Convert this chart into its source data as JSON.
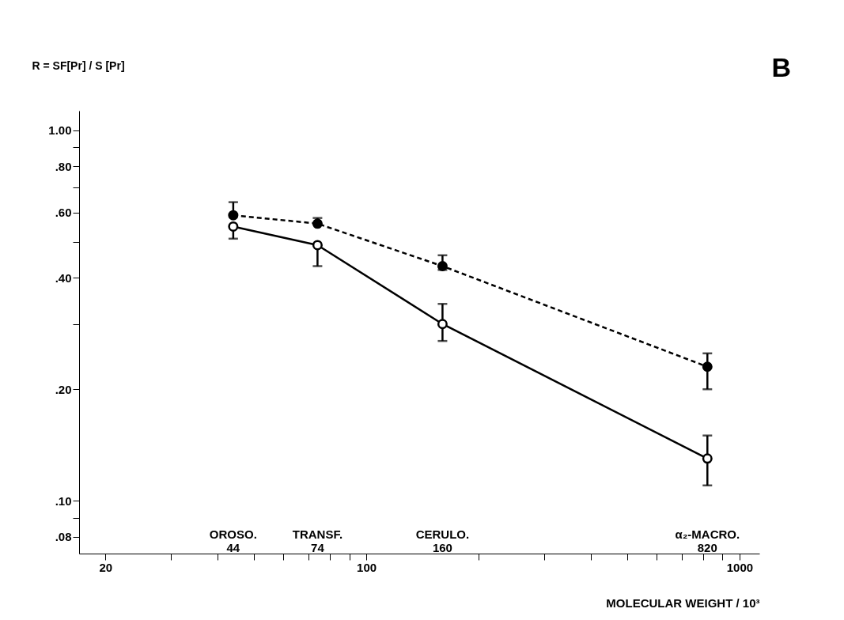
{
  "chart_data": {
    "type": "line",
    "ylabel": "R = SF[Pr] / S [Pr]",
    "xlabel": "MOLECULAR WEIGHT / 10³",
    "x": [
      44,
      74,
      160,
      820
    ],
    "series": [
      {
        "color": "#000000",
        "line_style": "dashed",
        "values": [
          0.59,
          0.56,
          0.43,
          0.23
        ],
        "errors": [
          [
            0.59,
            0.64
          ],
          [
            0.56,
            0.58
          ],
          [
            0.42,
            0.46
          ],
          [
            0.2,
            0.25
          ]
        ]
      },
      {
        "color": "#000000",
        "line_style": "solid",
        "values": [
          0.55,
          0.49,
          0.3,
          0.13
        ],
        "errors": [
          [
            0.51,
            0.55
          ],
          [
            0.43,
            0.49
          ],
          [
            0.27,
            0.34
          ],
          [
            0.11,
            0.15
          ]
        ]
      }
    ],
    "marker": "circle",
    "log": "xy",
    "xlim": [
      17,
      1130
    ],
    "ylim": [
      0.072,
      1.13
    ],
    "xticks": [
      20,
      {
        "value": 30,
        "label": null
      },
      {
        "value": 40,
        "label": null
      },
      {
        "value": 50,
        "label": null
      },
      {
        "value": 60,
        "label": null
      },
      {
        "value": 70,
        "label": null
      },
      {
        "value": 80,
        "label": null
      },
      {
        "value": 90,
        "label": null
      },
      100,
      {
        "value": 200,
        "label": null
      },
      {
        "value": 300,
        "label": null
      },
      {
        "value": 400,
        "label": null
      },
      {
        "value": 500,
        "label": null
      },
      {
        "value": 600,
        "label": null
      },
      {
        "value": 700,
        "label": null
      },
      {
        "value": 800,
        "label": null
      },
      {
        "value": 900,
        "label": null
      },
      1000
    ],
    "yticks": [
      {
        "value": 0.08,
        "label": ".08"
      },
      {
        "value": 0.09,
        "label": null
      },
      {
        "value": 0.1,
        "label": ".10"
      },
      {
        "value": 0.2,
        "label": ".20"
      },
      {
        "value": 0.3,
        "label": null
      },
      {
        "value": 0.4,
        "label": ".40"
      },
      {
        "value": 0.5,
        "label": null
      },
      {
        "value": 0.6,
        "label": ".60"
      },
      {
        "value": 0.7,
        "label": null
      },
      {
        "value": 0.8,
        "label": ".80"
      },
      {
        "value": 0.9,
        "label": null
      },
      {
        "value": 1.0,
        "label": "1.00"
      }
    ],
    "grid": false,
    "annotations": [
      "OROSO.\n44",
      "TRANSF.\n74",
      "CERULO.\n160",
      "α₂-MACRO.\n820",
      "B"
    ]
  }
}
